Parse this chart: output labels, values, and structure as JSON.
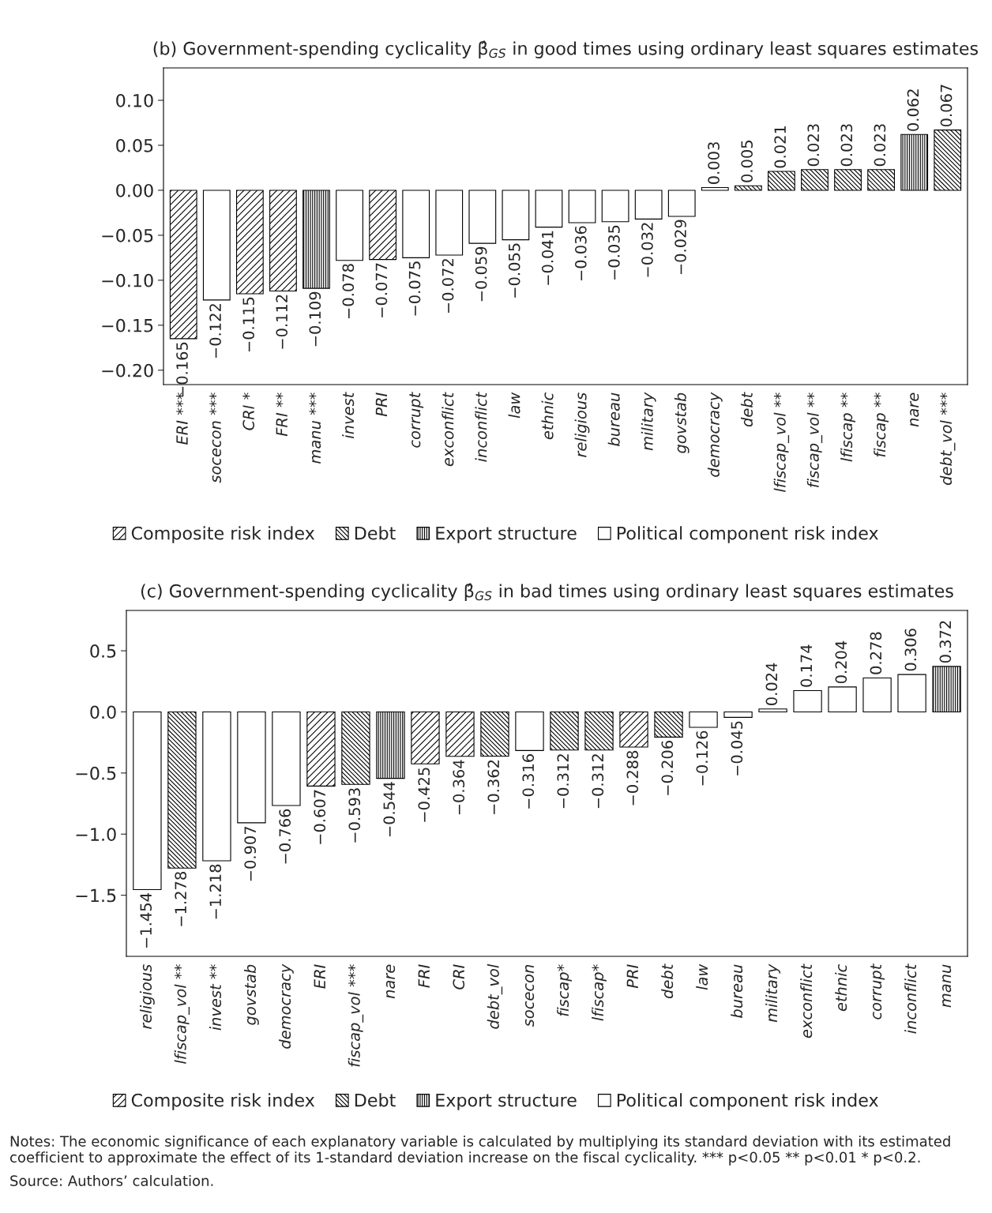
{
  "chart_data": [
    {
      "type": "bar",
      "title": "(b) Government-spending cyclicality β̂$_{GS}$ in good times using ordinary least squares estimates",
      "categories": [
        "ERI ***",
        "socecon ***",
        "CRI *",
        "FRI **",
        "manu ***",
        "invest",
        "PRI",
        "corrupt",
        "exconflict",
        "inconflict",
        "law",
        "ethnic",
        "religious",
        "bureau",
        "military",
        "govstab",
        "democracy",
        "debt",
        "lfiscap_vol **",
        "fiscap_vol **",
        "lfiscap **",
        "fiscap **",
        "nare",
        "debt_vol ***"
      ],
      "series": [
        {
          "name": "Composite risk index",
          "color": "#000000",
          "values": [
            -0.165,
            null,
            -0.115,
            -0.112,
            null,
            null,
            -0.077,
            null,
            null,
            null,
            null,
            null,
            null,
            null,
            null,
            null,
            null,
            null,
            null,
            null,
            null,
            null,
            null,
            null
          ],
          "value_labels": [
            "−0.165",
            null,
            "−0.115",
            "−0.112",
            null,
            null,
            "−0.077",
            null,
            null,
            null,
            null,
            null,
            null,
            null,
            null,
            null,
            null,
            null,
            null,
            null,
            null,
            null,
            null,
            null
          ]
        },
        {
          "name": "Debt",
          "color": "#000000",
          "values": [
            null,
            null,
            null,
            null,
            null,
            null,
            null,
            null,
            null,
            null,
            null,
            null,
            null,
            null,
            null,
            null,
            null,
            0.005,
            0.021,
            0.023,
            0.023,
            0.023,
            null,
            0.067
          ],
          "value_labels": [
            null,
            null,
            null,
            null,
            null,
            null,
            null,
            null,
            null,
            null,
            null,
            null,
            null,
            null,
            null,
            null,
            null,
            "0.005",
            "0.021",
            "0.023",
            "0.023",
            "0.023",
            null,
            "0.067"
          ]
        },
        {
          "name": "Export structure",
          "color": "#000000",
          "values": [
            null,
            null,
            null,
            null,
            -0.109,
            null,
            null,
            null,
            null,
            null,
            null,
            null,
            null,
            null,
            null,
            null,
            null,
            null,
            null,
            null,
            null,
            null,
            0.062,
            null
          ],
          "value_labels": [
            null,
            null,
            null,
            null,
            "−0.109",
            null,
            null,
            null,
            null,
            null,
            null,
            null,
            null,
            null,
            null,
            null,
            null,
            null,
            null,
            null,
            null,
            null,
            "0.062",
            null
          ]
        },
        {
          "name": "Political component risk index",
          "color": "#ffffff",
          "values": [
            null,
            -0.122,
            null,
            null,
            null,
            -0.078,
            null,
            -0.075,
            -0.072,
            -0.059,
            -0.055,
            -0.041,
            -0.036,
            -0.035,
            -0.032,
            -0.029,
            0.003,
            null,
            null,
            null,
            null,
            null,
            null,
            null
          ],
          "value_labels": [
            null,
            "−0.122",
            null,
            null,
            null,
            "−0.078",
            null,
            "−0.075",
            "−0.072",
            "−0.059",
            "−0.055",
            "−0.041",
            "−0.036",
            "−0.035",
            "−0.032",
            "−0.029",
            "0.003",
            null,
            null,
            null,
            null,
            null,
            null,
            null
          ]
        }
      ],
      "ylim": [
        -0.216,
        0.136
      ],
      "yticks": [
        {
          "value": -0.2,
          "label": "−0.20"
        },
        {
          "value": -0.15,
          "label": "−0.15"
        },
        {
          "value": -0.1,
          "label": "−0.10"
        },
        {
          "value": -0.05,
          "label": "−0.05"
        },
        {
          "value": 0,
          "label": "0.00"
        },
        {
          "value": 0.05,
          "label": "0.05"
        },
        {
          "value": 0.1,
          "label": "0.10"
        }
      ],
      "legend": "bottom",
      "grid": false
    },
    {
      "type": "bar",
      "title": "(c) Government-spending cyclicality β̂$_{GS}$ in bad times using ordinary least squares estimates",
      "categories": [
        "religious",
        "lfiscap_vol **",
        "invest **",
        "govstab",
        "democracy",
        "ERI",
        "fiscap_vol ***",
        "nare",
        "FRI",
        "CRI",
        "debt_vol",
        "socecon",
        "fiscap*",
        "lfiscap*",
        "PRI",
        "debt",
        "law",
        "bureau",
        "military",
        "exconflict",
        "ethnic",
        "corrupt",
        "inconflict",
        "manu"
      ],
      "series": [
        {
          "name": "Composite risk index",
          "color": "#000000",
          "values": [
            null,
            null,
            null,
            null,
            null,
            -0.607,
            null,
            null,
            -0.425,
            -0.364,
            null,
            null,
            null,
            null,
            -0.288,
            null,
            null,
            null,
            null,
            null,
            null,
            null,
            null,
            null
          ],
          "value_labels": [
            null,
            null,
            null,
            null,
            null,
            "−0.607",
            null,
            null,
            "−0.425",
            "−0.364",
            null,
            null,
            null,
            null,
            "−0.288",
            null,
            null,
            null,
            null,
            null,
            null,
            null,
            null,
            null
          ]
        },
        {
          "name": "Debt",
          "color": "#000000",
          "values": [
            null,
            -1.278,
            null,
            null,
            null,
            null,
            -0.593,
            null,
            null,
            null,
            -0.362,
            null,
            -0.312,
            -0.312,
            null,
            -0.206,
            null,
            null,
            null,
            null,
            null,
            null,
            null,
            null
          ],
          "value_labels": [
            null,
            "−1.278",
            null,
            null,
            null,
            null,
            "−0.593",
            null,
            null,
            null,
            "−0.362",
            null,
            "−0.312",
            "−0.312",
            null,
            "−0.206",
            null,
            null,
            null,
            null,
            null,
            null,
            null,
            null
          ]
        },
        {
          "name": "Export structure",
          "color": "#000000",
          "values": [
            null,
            null,
            null,
            null,
            null,
            null,
            null,
            -0.544,
            null,
            null,
            null,
            null,
            null,
            null,
            null,
            null,
            null,
            null,
            null,
            null,
            null,
            null,
            null,
            0.372
          ],
          "value_labels": [
            null,
            null,
            null,
            null,
            null,
            null,
            null,
            "−0.544",
            null,
            null,
            null,
            null,
            null,
            null,
            null,
            null,
            null,
            null,
            null,
            null,
            null,
            null,
            null,
            "0.372"
          ]
        },
        {
          "name": "Political component risk index",
          "color": "#ffffff",
          "values": [
            -1.454,
            null,
            -1.218,
            -0.907,
            -0.766,
            null,
            null,
            null,
            null,
            null,
            null,
            -0.316,
            null,
            null,
            null,
            null,
            -0.126,
            -0.045,
            0.024,
            0.174,
            0.204,
            0.278,
            0.306,
            null
          ],
          "value_labels": [
            "−1.454",
            null,
            "−1.218",
            "−0.907",
            "−0.766",
            null,
            null,
            null,
            null,
            null,
            null,
            "−0.316",
            null,
            null,
            null,
            null,
            "−0.126",
            "−0.045",
            "0.024",
            "0.174",
            "0.204",
            "0.278",
            "0.306",
            null
          ]
        }
      ],
      "ylim": [
        -2.0,
        0.83
      ],
      "yticks": [
        {
          "value": -1.5,
          "label": "−1.5"
        },
        {
          "value": -1.0,
          "label": "−1.0"
        },
        {
          "value": -0.5,
          "label": "−0.5"
        },
        {
          "value": 0,
          "label": "0.0"
        },
        {
          "value": 0.5,
          "label": "0.5"
        }
      ],
      "legend": "bottom",
      "grid": false,
      "annotations": [
        "Notes: The economic significance of each explanatory variable is calculated by multiplying its standard deviation with its estimated coefficient to approximate the effect of its 1-standard deviation increase on the fiscal cyclicality. *** p<0.05 ** p<0.01 * p<0.2.",
        "Source: Authors’ calculation."
      ]
    }
  ]
}
